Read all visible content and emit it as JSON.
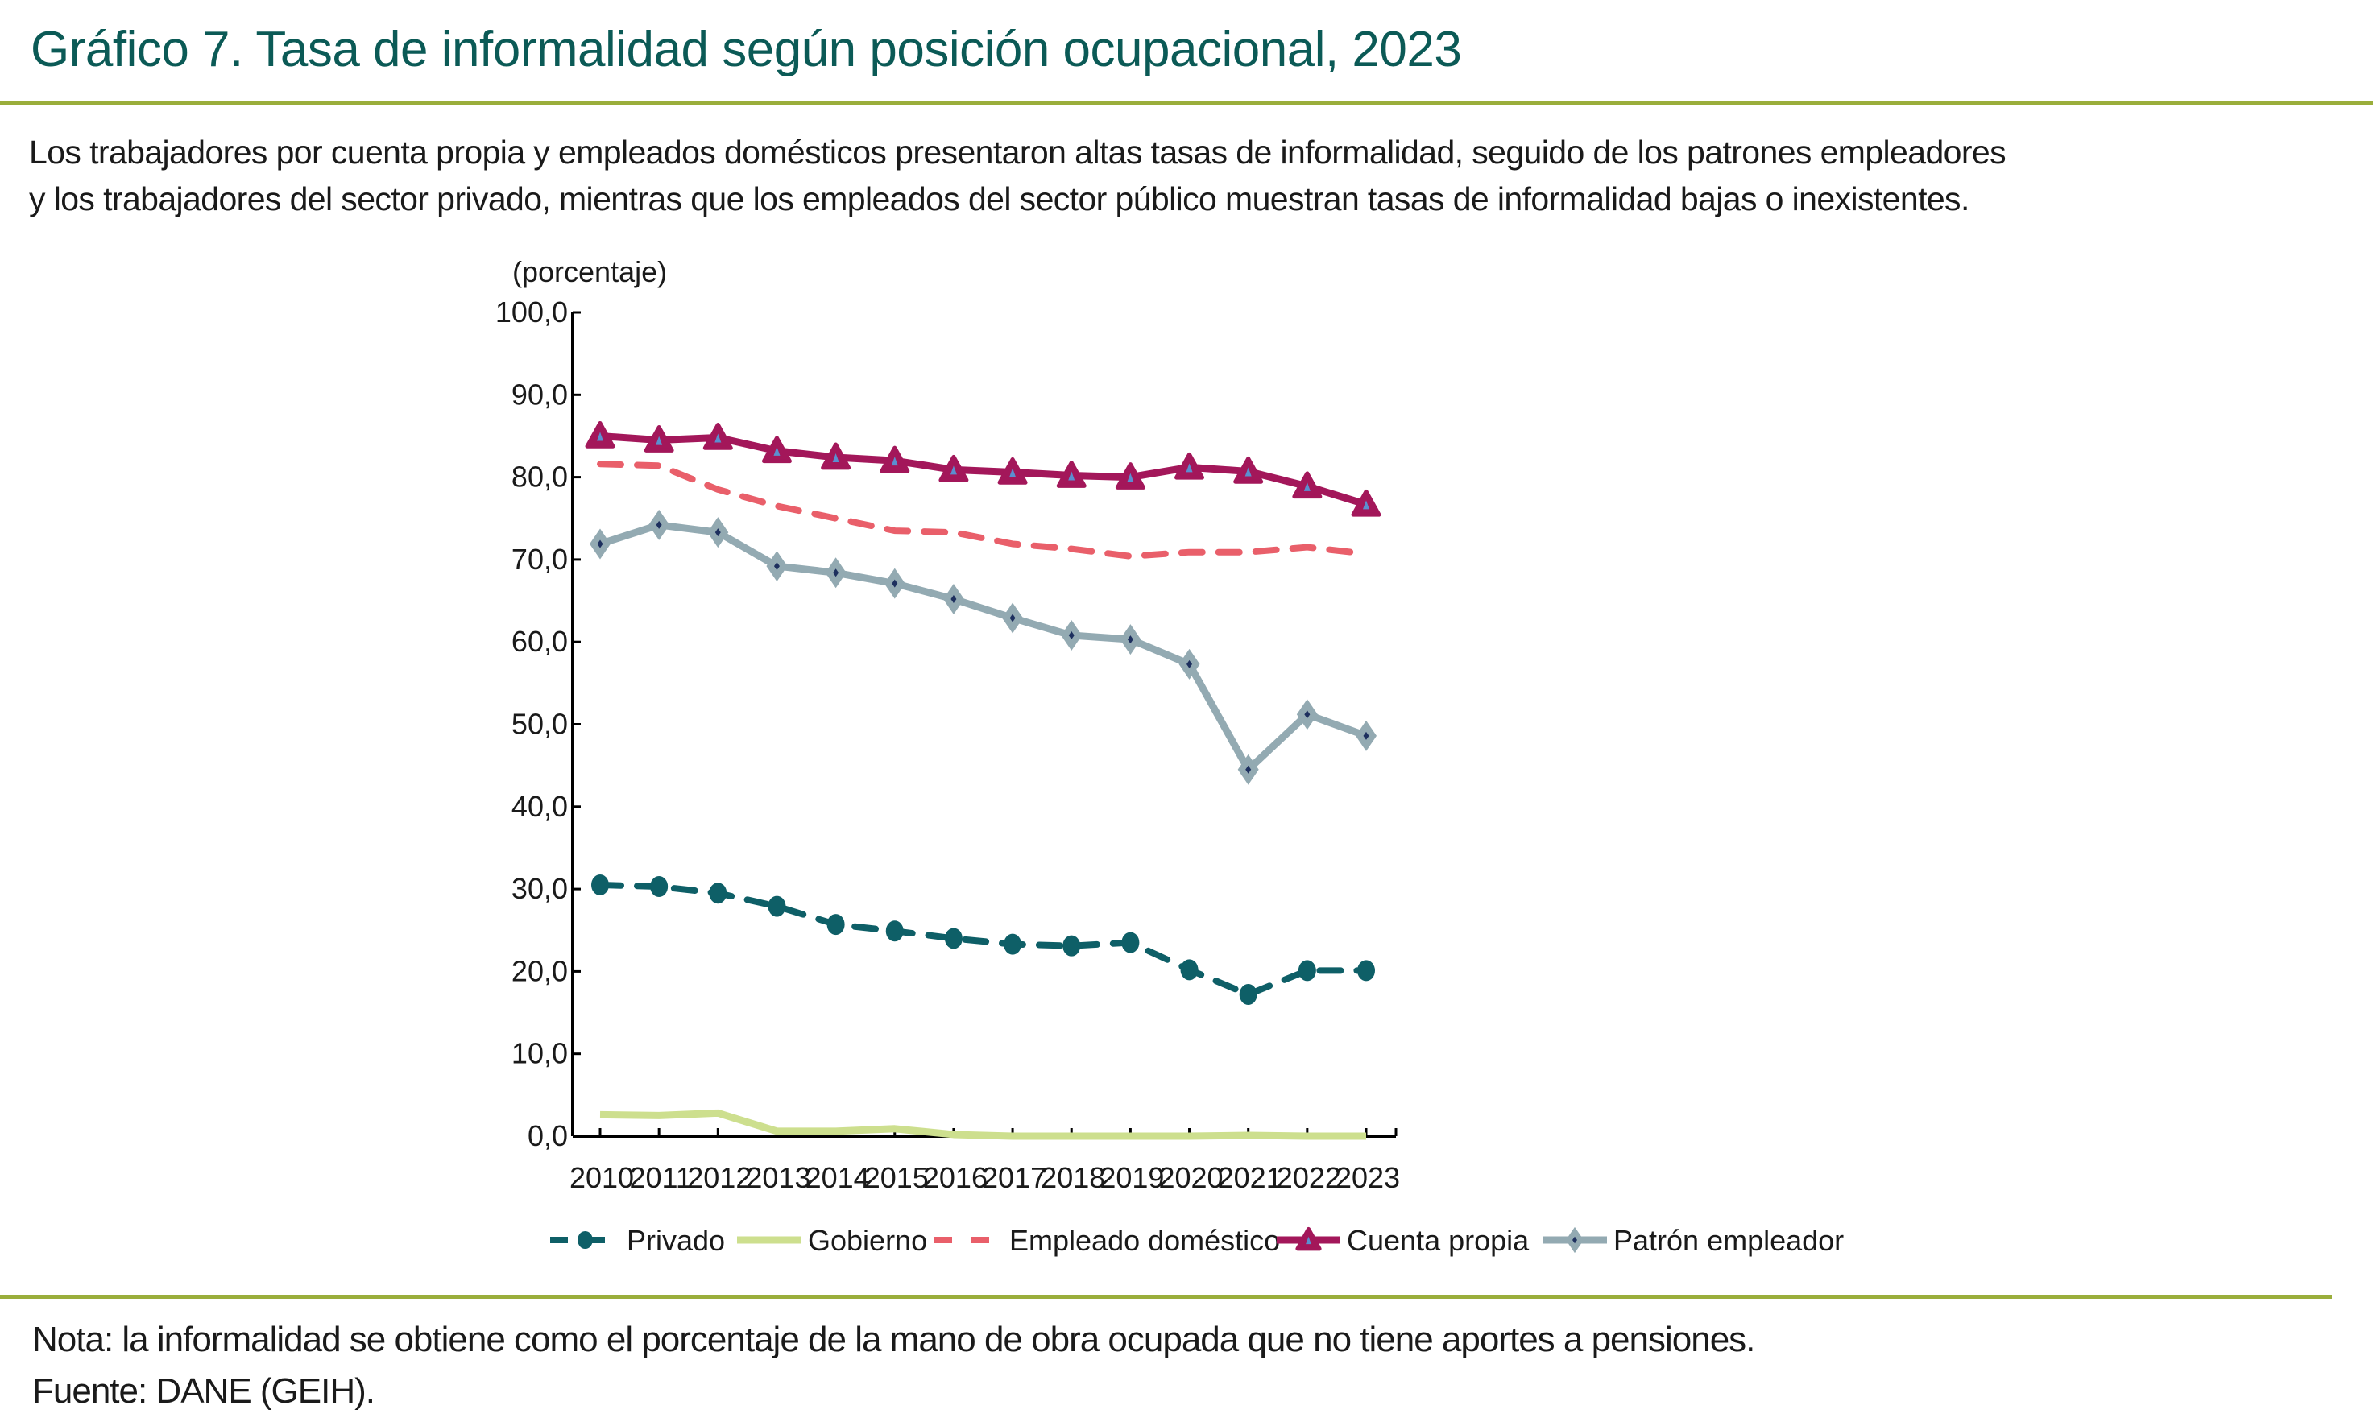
{
  "header": {
    "title": "Gráfico 7. Tasa de informalidad según posición ocupacional, 2023",
    "subtitle_lines": [
      "Los trabajadores por cuenta propia y empleados domésticos presentaron altas tasas de informalidad, seguido de los patrones empleadores",
      "y los trabajadores del sector privado, mientras que los empleados del sector público muestran tasas de informalidad bajas o inexistentes."
    ]
  },
  "footer": {
    "note": "Nota: la informalidad se obtiene como el porcentaje de la mano de obra ocupada que no tiene aportes a pensiones.",
    "source": "Fuente: DANE (GEIH)."
  },
  "colors": {
    "title": "#0b5a56",
    "divider": "#9aae3b"
  },
  "chart_data": {
    "type": "line",
    "title": "Tasa de informalidad según posición ocupacional, 2023",
    "ylabel": "(porcentaje)",
    "xlabel": "",
    "ylim": [
      0,
      100
    ],
    "y_ticks": [
      0,
      10,
      20,
      30,
      40,
      50,
      60,
      70,
      80,
      90,
      100
    ],
    "y_tick_labels": [
      "0,0",
      "10,0",
      "20,0",
      "30,0",
      "40,0",
      "50,0",
      "60,0",
      "70,0",
      "80,0",
      "90,0",
      "100,0"
    ],
    "grid": false,
    "legend_position": "bottom",
    "categories": [
      "2010",
      "2011",
      "2012",
      "2013",
      "2014",
      "2015",
      "2016",
      "2017",
      "2018",
      "2019",
      "2020",
      "2021",
      "2022",
      "2023"
    ],
    "series": [
      {
        "name": "Privado",
        "color": "#0e5f67",
        "dash": "dashed",
        "marker": "circle",
        "values": [
          30.5,
          30.3,
          29.5,
          27.9,
          25.7,
          24.9,
          24.0,
          23.3,
          23.1,
          23.5,
          20.2,
          17.2,
          20.1,
          20.1
        ]
      },
      {
        "name": "Gobierno",
        "color": "#cddf8e",
        "dash": "solid",
        "marker": "none",
        "values": [
          2.6,
          2.5,
          2.8,
          0.6,
          0.6,
          0.9,
          0.2,
          0.0,
          0.0,
          0.0,
          0.0,
          0.1,
          0.0,
          0.0
        ]
      },
      {
        "name": "Empleado doméstico",
        "color": "#e95f6a",
        "dash": "dashed",
        "marker": "none",
        "values": [
          81.6,
          81.4,
          78.5,
          76.5,
          75.0,
          73.5,
          73.3,
          71.9,
          71.3,
          70.4,
          70.9,
          70.9,
          71.5,
          70.7
        ]
      },
      {
        "name": "Cuenta propia",
        "color": "#a3175a",
        "dash": "solid",
        "marker": "triangle",
        "values": [
          85.0,
          84.5,
          84.8,
          83.2,
          82.4,
          82.0,
          80.9,
          80.6,
          80.2,
          80.0,
          81.2,
          80.7,
          78.9,
          76.7
        ]
      },
      {
        "name": "Patrón empleador",
        "color": "#93aab2",
        "dash": "solid",
        "marker": "diamond",
        "values": [
          71.9,
          74.2,
          73.3,
          69.2,
          68.4,
          67.1,
          65.2,
          62.9,
          60.8,
          60.3,
          57.3,
          44.5,
          51.2,
          48.6
        ]
      }
    ]
  }
}
